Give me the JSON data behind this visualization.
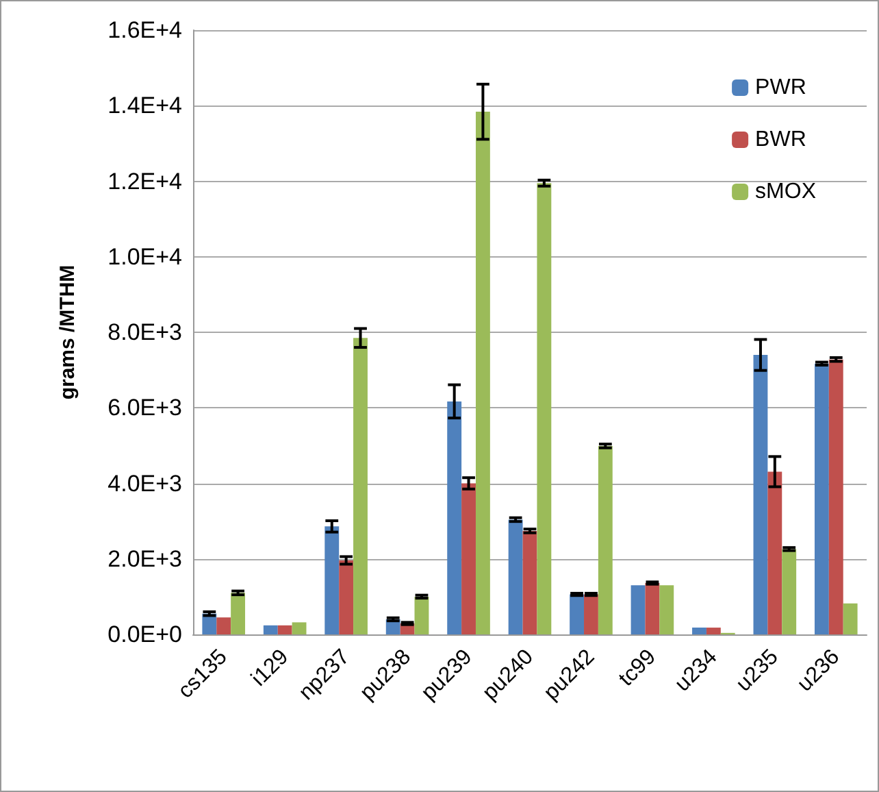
{
  "chart_data": {
    "type": "bar",
    "ylabel": "grams /MTHM",
    "categories": [
      "cs135",
      "i129",
      "np237",
      "pu238",
      "pu239",
      "pu240",
      "pu242",
      "tc99",
      "u234",
      "u235",
      "u236"
    ],
    "series": [
      {
        "name": "PWR",
        "color": "#4f81bd",
        "values": [
          550,
          240,
          2860,
          400,
          6170,
          3040,
          1060,
          1300,
          180,
          7400,
          7170
        ],
        "errors": [
          50,
          null,
          150,
          40,
          440,
          50,
          30,
          null,
          null,
          410,
          40
        ]
      },
      {
        "name": "BWR",
        "color": "#c0504d",
        "values": [
          450,
          240,
          1960,
          290,
          4000,
          2740,
          1060,
          1360,
          180,
          4310,
          7280
        ],
        "errors": [
          null,
          null,
          100,
          30,
          150,
          50,
          30,
          30,
          null,
          400,
          50
        ]
      },
      {
        "name": "sMOX",
        "color": "#9bbb59",
        "values": [
          1100,
          320,
          7850,
          1000,
          13840,
          11950,
          4990,
          1300,
          40,
          2260,
          820
        ],
        "errors": [
          50,
          null,
          250,
          40,
          730,
          80,
          50,
          null,
          null,
          40,
          null
        ]
      }
    ],
    "ylim": [
      0,
      16000
    ],
    "yticks": [
      {
        "value": 0,
        "label": "0.0E+0"
      },
      {
        "value": 2000,
        "label": "2.0E+3"
      },
      {
        "value": 4000,
        "label": "4.0E+3"
      },
      {
        "value": 6000,
        "label": "6.0E+3"
      },
      {
        "value": 8000,
        "label": "8.0E+3"
      },
      {
        "value": 10000,
        "label": "1.0E+4"
      },
      {
        "value": 12000,
        "label": "1.2E+4"
      },
      {
        "value": 14000,
        "label": "1.4E+4"
      },
      {
        "value": 16000,
        "label": "1.6E+4"
      }
    ],
    "grid": "y",
    "legend": "top right"
  }
}
